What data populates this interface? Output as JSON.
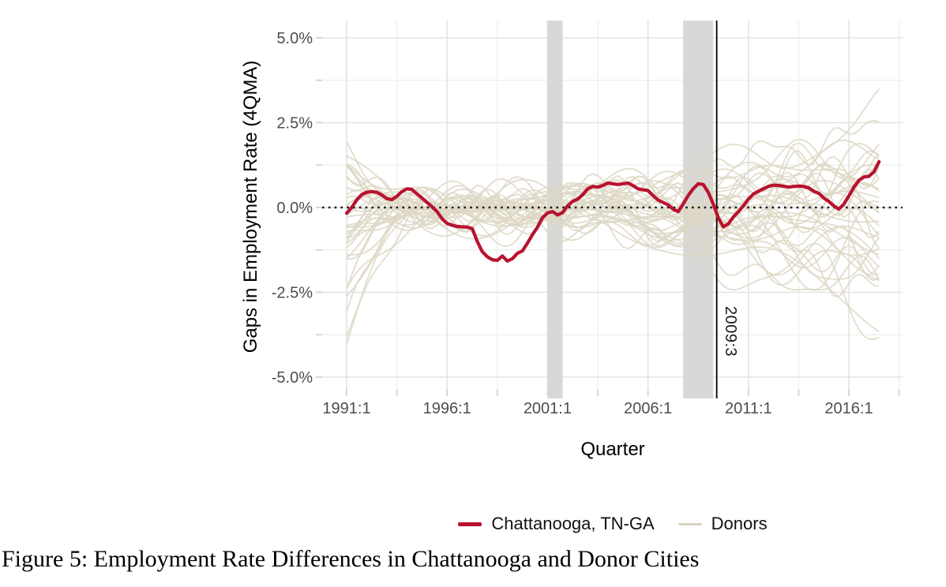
{
  "figure": {
    "caption": "Figure 5: Employment Rate Differences in Chattanooga and Donor Cities"
  },
  "chart_data": {
    "type": "line",
    "title": "",
    "xlabel": "Quarter",
    "ylabel": "Gaps in Employment Rate (4QMA)",
    "x_ticks": [
      "1991:1",
      "1996:1",
      "2001:1",
      "2006:1",
      "2011:1",
      "2016:1"
    ],
    "x_minor_tick_quarter_offsets": [
      10,
      30,
      50,
      70,
      90,
      110
    ],
    "y_ticks": {
      "labels": [
        "5.0%",
        "2.5%",
        "0.0%",
        "-2.5%",
        "-5.0%"
      ],
      "values": [
        5.0,
        2.5,
        0.0,
        -2.5,
        -5.0
      ]
    },
    "y_minor_tick_values": [
      3.75,
      1.25,
      -1.25,
      -3.75
    ],
    "ylim": [
      -5.5,
      5.5
    ],
    "x_start_quarter": "1991:1",
    "x_end_quarter": "2017:3",
    "grid": "on",
    "zero_line": {
      "value": 0.0,
      "style": "dotted",
      "color": "#1a1a1a"
    },
    "treatment_line": {
      "x": "2009:3",
      "label": "2009:3",
      "color": "#000000"
    },
    "recession_bands": [
      {
        "from": "2001:1",
        "to": "2001:4"
      },
      {
        "from": "2007:4",
        "to": "2009:2"
      }
    ],
    "series": [
      {
        "name": "Chattanooga, TN-GA",
        "color": "#b8122f",
        "width": 4.2,
        "start_quarter": "1991:1",
        "quarterly_values_pct": [
          -0.17,
          0.0,
          0.22,
          0.38,
          0.45,
          0.47,
          0.45,
          0.37,
          0.26,
          0.23,
          0.33,
          0.47,
          0.55,
          0.53,
          0.4,
          0.28,
          0.15,
          0.02,
          -0.12,
          -0.33,
          -0.47,
          -0.52,
          -0.56,
          -0.57,
          -0.58,
          -0.62,
          -1.0,
          -1.3,
          -1.45,
          -1.54,
          -1.56,
          -1.43,
          -1.58,
          -1.51,
          -1.35,
          -1.28,
          -1.05,
          -0.8,
          -0.58,
          -0.3,
          -0.16,
          -0.12,
          -0.22,
          -0.15,
          0.05,
          0.18,
          0.25,
          0.38,
          0.55,
          0.62,
          0.6,
          0.65,
          0.72,
          0.7,
          0.68,
          0.7,
          0.72,
          0.65,
          0.55,
          0.52,
          0.5,
          0.35,
          0.22,
          0.15,
          0.08,
          -0.05,
          -0.12,
          0.1,
          0.35,
          0.55,
          0.7,
          0.68,
          0.45,
          0.1,
          -0.3,
          -0.57,
          -0.48,
          -0.28,
          -0.12,
          0.05,
          0.25,
          0.4,
          0.48,
          0.55,
          0.62,
          0.66,
          0.65,
          0.63,
          0.6,
          0.62,
          0.63,
          0.62,
          0.58,
          0.48,
          0.42,
          0.28,
          0.18,
          0.05,
          -0.05,
          0.1,
          0.34,
          0.6,
          0.8,
          0.9,
          0.92,
          1.05,
          1.35
        ]
      }
    ],
    "donors": {
      "name": "Donors",
      "color": "#ddd7c4",
      "width": 1.8,
      "opacity": 0.85,
      "count": 38,
      "seed": 42,
      "approx_spread_pct": {
        "start": [
          -3.8,
          2.2
        ],
        "middle": [
          -2.2,
          2.2
        ],
        "end": [
          -3.9,
          4.3
        ]
      }
    },
    "legend": {
      "position": "bottom",
      "entries": [
        {
          "label": "Chattanooga, TN-GA",
          "color": "#b8122f"
        },
        {
          "label": "Donors",
          "color": "#ddd7c4"
        }
      ]
    }
  }
}
